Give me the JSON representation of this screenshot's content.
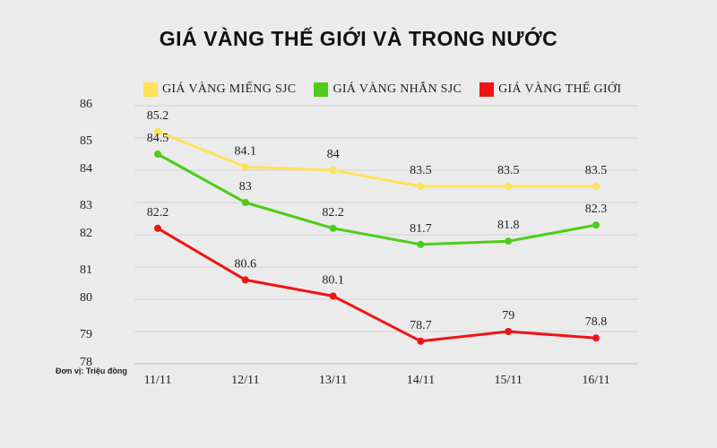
{
  "chart_data": {
    "type": "line",
    "title": "GIÁ VÀNG THẾ GIỚI VÀ TRONG NƯỚC",
    "unit_note": "Đơn vị: Triệu đồng",
    "categories": [
      "11/11",
      "12/11",
      "13/11",
      "14/11",
      "15/11",
      "16/11"
    ],
    "y_tick_labels": [
      "86",
      "85",
      "84",
      "83",
      "82",
      "81",
      "80",
      "79",
      "78"
    ],
    "ylim": [
      78,
      86
    ],
    "legend_position": "top",
    "grid": true,
    "series": [
      {
        "name": "GIÁ VÀNG MIẾNG SJC",
        "color": "#fde25a",
        "values": [
          85.2,
          84.1,
          84,
          83.5,
          83.5,
          83.5
        ]
      },
      {
        "name": "GIÁ VÀNG NHẪN SJC",
        "color": "#4ccd17",
        "values": [
          84.5,
          83,
          82.2,
          81.7,
          81.8,
          82.3
        ]
      },
      {
        "name": "GIÁ VÀNG THẾ GIỚI",
        "color": "#ee1515",
        "values": [
          82.2,
          80.6,
          80.1,
          78.7,
          79,
          78.8
        ]
      }
    ]
  }
}
